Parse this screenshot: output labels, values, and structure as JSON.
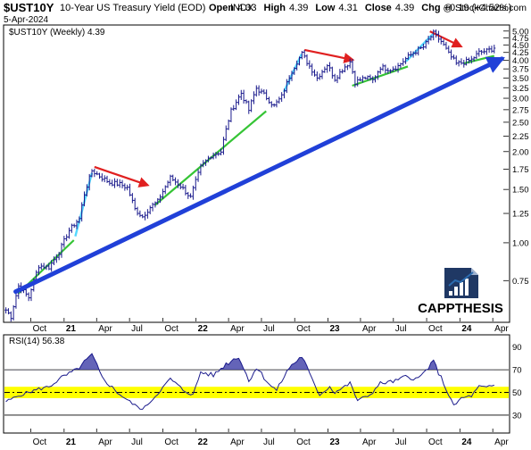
{
  "header": {
    "symbol": "$UST10Y",
    "name": "10-Year US Treasury Yield (EOD)",
    "exchange": "INDX",
    "credit": "@ StockCharts.com",
    "date": "5-Apr-2024",
    "ohlc": [
      {
        "label": "Open",
        "value": "4.33"
      },
      {
        "label": "High",
        "value": "4.39"
      },
      {
        "label": "Low",
        "value": "4.31"
      },
      {
        "label": "Close",
        "value": "4.39"
      },
      {
        "label": "Chg",
        "value": "+0.19 (+4.52%)",
        "color": "#1a7f1a"
      }
    ]
  },
  "legend": {
    "price": "$UST10Y (Weekly) 4.39",
    "rsi": "RSI(14) 56.38"
  },
  "watermark": {
    "brand": "CAPPTHESIS",
    "colors": {
      "dark": "#1f3864",
      "blue": "#2b6cb0"
    }
  },
  "colors": {
    "bars": "#1a1a8c",
    "trend_main": "#2040d8",
    "support": "#35c435",
    "pullback": "#e02020",
    "rally": "#55d8ff",
    "rsi_line": "#1a1a8c",
    "rsi_fill": "#3030a0",
    "rsi_band": "#ffff00"
  },
  "chart_data": [
    {
      "type": "line",
      "subtype": "ohlc-bars",
      "series": [
        {
          "name": "$UST10Y (Weekly) 4.39"
        }
      ],
      "y_scale": "log",
      "y_ticks": [
        5.0,
        4.75,
        4.5,
        4.25,
        4.0,
        3.75,
        3.5,
        3.25,
        3.0,
        2.75,
        2.5,
        2.25,
        2.0,
        1.75,
        1.5,
        1.25,
        1.0,
        0.75
      ],
      "y_tick_labels": [
        "5.00",
        "4.75",
        "4.50",
        "4.25",
        "4.00",
        "3.75",
        "3.50",
        "3.25",
        "3.00",
        "2.75",
        "2.50",
        "2.25",
        "2.00",
        "1.75",
        "1.50",
        "1.25",
        "1.00",
        "0.75"
      ],
      "ylim": [
        0.55,
        5.2
      ],
      "x_tick_labels": [
        "Oct",
        "21",
        "Apr",
        "Jul",
        "Oct",
        "22",
        "Apr",
        "Jul",
        "Oct",
        "23",
        "Apr",
        "Jul",
        "Oct",
        "24",
        "Apr"
      ],
      "x_tick_dates": [
        "2020-10-01",
        "2021-01-01",
        "2021-04-01",
        "2021-07-01",
        "2021-10-01",
        "2022-01-01",
        "2022-04-01",
        "2022-07-01",
        "2022-10-01",
        "2023-01-01",
        "2023-04-01",
        "2023-07-01",
        "2023-10-01",
        "2024-01-01",
        "2024-04-01"
      ],
      "xlim": [
        "2020-07-20",
        "2024-05-15"
      ],
      "anchors": [
        [
          "2020-07-24",
          0.6
        ],
        [
          "2020-08-07",
          0.57
        ],
        [
          "2020-08-28",
          0.72
        ],
        [
          "2020-09-25",
          0.66
        ],
        [
          "2020-10-23",
          0.84
        ],
        [
          "2020-11-20",
          0.83
        ],
        [
          "2020-12-18",
          0.93
        ],
        [
          "2021-01-15",
          1.1
        ],
        [
          "2021-02-12",
          1.2
        ],
        [
          "2021-02-26",
          1.45
        ],
        [
          "2021-03-19",
          1.73
        ],
        [
          "2021-04-09",
          1.66
        ],
        [
          "2021-05-07",
          1.58
        ],
        [
          "2021-06-04",
          1.56
        ],
        [
          "2021-06-25",
          1.52
        ],
        [
          "2021-07-16",
          1.29
        ],
        [
          "2021-08-06",
          1.22
        ],
        [
          "2021-08-27",
          1.31
        ],
        [
          "2021-09-17",
          1.37
        ],
        [
          "2021-10-22",
          1.64
        ],
        [
          "2021-11-19",
          1.54
        ],
        [
          "2021-12-17",
          1.41
        ],
        [
          "2022-01-14",
          1.78
        ],
        [
          "2022-02-11",
          1.94
        ],
        [
          "2022-03-11",
          2.0
        ],
        [
          "2022-04-08",
          2.72
        ],
        [
          "2022-05-06",
          3.12
        ],
        [
          "2022-05-27",
          2.74
        ],
        [
          "2022-06-17",
          3.24
        ],
        [
          "2022-07-08",
          3.08
        ],
        [
          "2022-08-05",
          2.83
        ],
        [
          "2022-08-26",
          3.04
        ],
        [
          "2022-09-23",
          3.69
        ],
        [
          "2022-10-21",
          4.21
        ],
        [
          "2022-11-11",
          3.83
        ],
        [
          "2022-12-02",
          3.5
        ],
        [
          "2022-12-30",
          3.87
        ],
        [
          "2023-01-20",
          3.48
        ],
        [
          "2023-02-17",
          3.82
        ],
        [
          "2023-03-03",
          3.96
        ],
        [
          "2023-03-17",
          3.39
        ],
        [
          "2023-04-14",
          3.51
        ],
        [
          "2023-05-05",
          3.44
        ],
        [
          "2023-05-26",
          3.8
        ],
        [
          "2023-06-23",
          3.74
        ],
        [
          "2023-07-14",
          3.83
        ],
        [
          "2023-08-04",
          4.05
        ],
        [
          "2023-08-25",
          4.24
        ],
        [
          "2023-09-22",
          4.43
        ],
        [
          "2023-10-20",
          4.91
        ],
        [
          "2023-11-10",
          4.62
        ],
        [
          "2023-12-01",
          4.2
        ],
        [
          "2023-12-22",
          3.9
        ],
        [
          "2024-01-12",
          3.94
        ],
        [
          "2024-02-02",
          4.02
        ],
        [
          "2024-02-23",
          4.25
        ],
        [
          "2024-03-15",
          4.3
        ],
        [
          "2024-04-05",
          4.39
        ]
      ],
      "annotations": [
        {
          "kind": "trendline",
          "color": "#2040d8",
          "from": [
            "2020-08-20",
            0.69
          ],
          "to": [
            "2024-04-26",
            4.05
          ]
        },
        {
          "kind": "support",
          "color": "#35c435",
          "from": [
            "2020-08-27",
            0.68
          ],
          "to": [
            "2021-01-28",
            1.02
          ]
        },
        {
          "kind": "support",
          "color": "#35c435",
          "from": [
            "2021-09-09",
            1.33
          ],
          "to": [
            "2022-07-14",
            2.72
          ]
        },
        {
          "kind": "support",
          "color": "#35c435",
          "from": [
            "2023-03-09",
            3.3
          ],
          "to": [
            "2023-08-10",
            3.82
          ]
        },
        {
          "kind": "support",
          "color": "#35c435",
          "from": [
            "2024-01-11",
            3.91
          ],
          "to": [
            "2024-04-05",
            4.14
          ]
        },
        {
          "kind": "rally",
          "color": "#55d8ff",
          "from": [
            "2021-02-01",
            1.05
          ],
          "to": [
            "2021-03-19",
            1.7
          ]
        },
        {
          "kind": "rally",
          "color": "#55d8ff",
          "from": [
            "2022-09-01",
            3.15
          ],
          "to": [
            "2022-10-20",
            4.2
          ]
        },
        {
          "kind": "rally",
          "color": "#55d8ff",
          "from": [
            "2023-08-05",
            3.97
          ],
          "to": [
            "2023-10-20",
            4.91
          ]
        },
        {
          "kind": "pullback",
          "color": "#e02020",
          "from": [
            "2021-03-26",
            1.78
          ],
          "to": [
            "2021-08-20",
            1.55
          ]
        },
        {
          "kind": "pullback",
          "color": "#e02020",
          "from": [
            "2022-10-28",
            4.33
          ],
          "to": [
            "2023-03-10",
            4.02
          ]
        },
        {
          "kind": "pullback",
          "color": "#e02020",
          "from": [
            "2023-10-10",
            4.99
          ],
          "to": [
            "2024-01-04",
            4.45
          ]
        }
      ]
    },
    {
      "type": "area",
      "series": [
        {
          "name": "RSI(14) 56.38"
        }
      ],
      "ylim": [
        15,
        100
      ],
      "y_ticks": [
        90,
        70,
        50,
        30
      ],
      "y_tick_labels": [
        "90",
        "70",
        "50",
        "30"
      ],
      "reference_lines": [
        70,
        30
      ],
      "highlight_band": [
        45,
        55
      ],
      "x_tick_labels": [
        "Oct",
        "21",
        "Apr",
        "Jul",
        "Oct",
        "22",
        "Apr",
        "Jul",
        "Oct",
        "23",
        "Apr",
        "Jul",
        "Oct",
        "24",
        "Apr"
      ],
      "anchors": [
        [
          "2020-07-24",
          42
        ],
        [
          "2020-09-04",
          48
        ],
        [
          "2020-10-23",
          53
        ],
        [
          "2020-11-20",
          55
        ],
        [
          "2020-12-25",
          63
        ],
        [
          "2021-02-05",
          70
        ],
        [
          "2021-03-19",
          83
        ],
        [
          "2021-04-16",
          63
        ],
        [
          "2021-05-28",
          50
        ],
        [
          "2021-07-09",
          40
        ],
        [
          "2021-08-06",
          35
        ],
        [
          "2021-09-03",
          44
        ],
        [
          "2021-10-22",
          62
        ],
        [
          "2021-11-26",
          52
        ],
        [
          "2021-12-24",
          48
        ],
        [
          "2022-01-14",
          68
        ],
        [
          "2022-02-18",
          65
        ],
        [
          "2022-03-25",
          75
        ],
        [
          "2022-04-29",
          82
        ],
        [
          "2022-05-27",
          60
        ],
        [
          "2022-06-17",
          72
        ],
        [
          "2022-07-29",
          55
        ],
        [
          "2022-08-12",
          52
        ],
        [
          "2022-09-16",
          72
        ],
        [
          "2022-10-21",
          82
        ],
        [
          "2022-11-18",
          61
        ],
        [
          "2022-12-09",
          48
        ],
        [
          "2023-01-06",
          55
        ],
        [
          "2023-01-20",
          50
        ],
        [
          "2023-03-03",
          58
        ],
        [
          "2023-03-24",
          43
        ],
        [
          "2023-04-28",
          48
        ],
        [
          "2023-05-26",
          58
        ],
        [
          "2023-07-07",
          60
        ],
        [
          "2023-08-04",
          64
        ],
        [
          "2023-09-08",
          62
        ],
        [
          "2023-10-20",
          77
        ],
        [
          "2023-11-10",
          63
        ],
        [
          "2023-12-15",
          38
        ],
        [
          "2024-01-05",
          45
        ],
        [
          "2024-02-02",
          47
        ],
        [
          "2024-02-23",
          55
        ],
        [
          "2024-03-15",
          54
        ],
        [
          "2024-04-05",
          56.38
        ]
      ]
    }
  ]
}
